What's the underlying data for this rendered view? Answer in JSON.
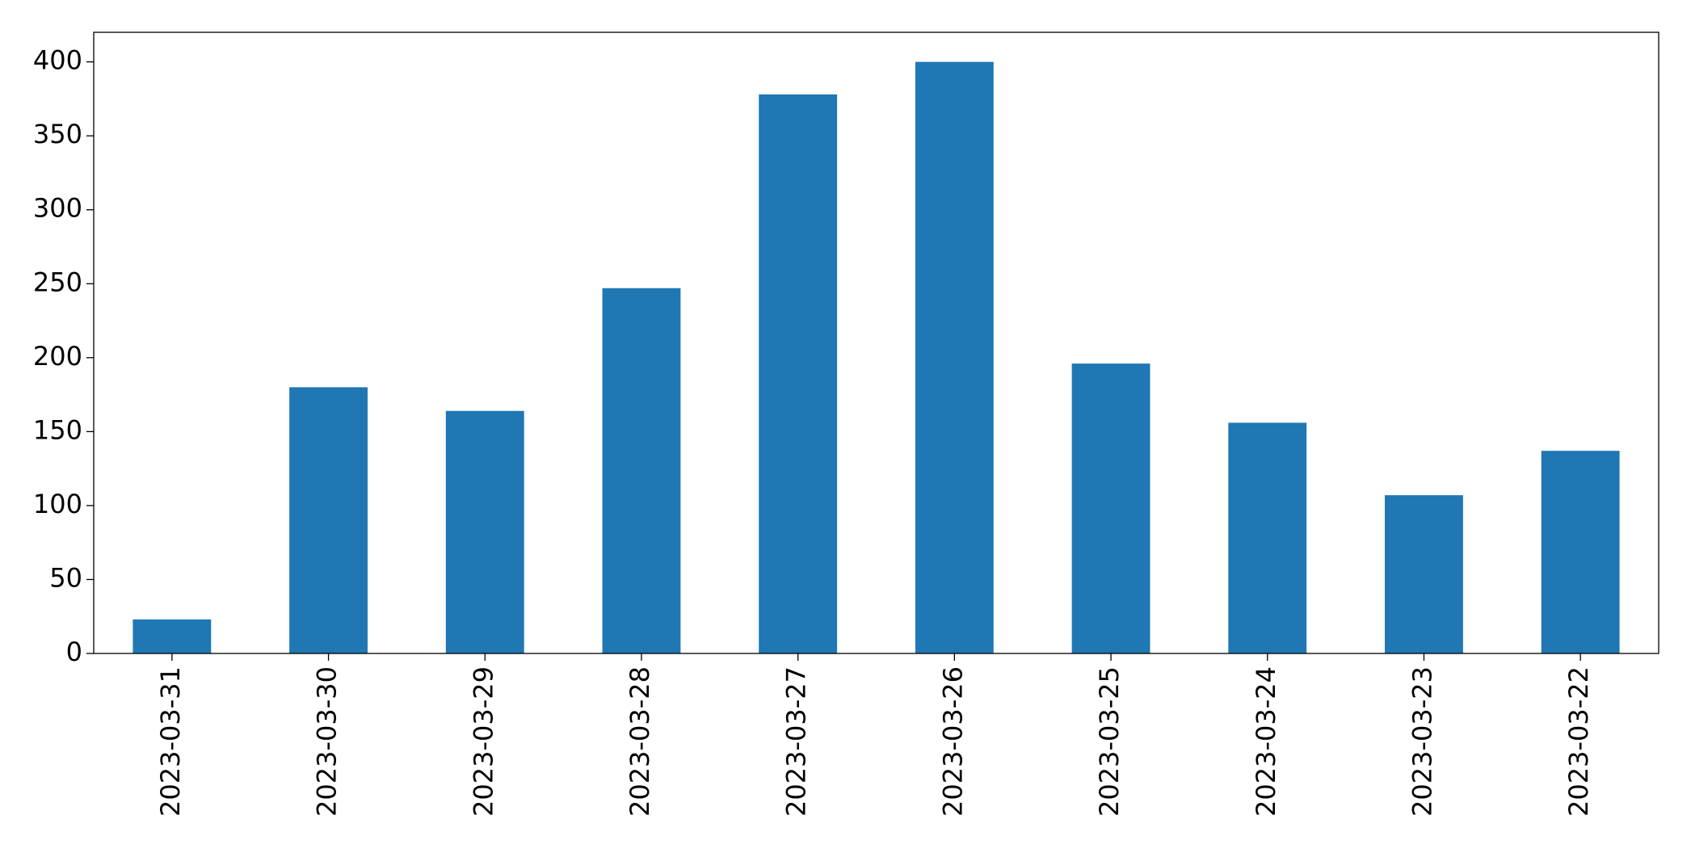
{
  "chart_data": {
    "type": "bar",
    "categories": [
      "2023-03-31",
      "2023-03-30",
      "2023-03-29",
      "2023-03-28",
      "2023-03-27",
      "2023-03-26",
      "2023-03-25",
      "2023-03-24",
      "2023-03-23",
      "2023-03-22"
    ],
    "values": [
      23,
      180,
      164,
      247,
      378,
      400,
      196,
      156,
      107,
      137
    ],
    "color": "#1f77b4",
    "ylim": [
      0,
      420
    ],
    "yticks": [
      0,
      50,
      100,
      150,
      200,
      250,
      300,
      350,
      400
    ],
    "grid": false
  }
}
